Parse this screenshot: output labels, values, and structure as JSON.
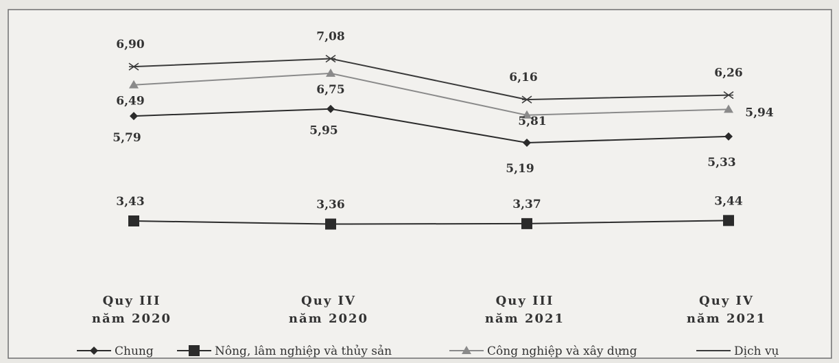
{
  "chart_data": {
    "type": "line",
    "title": "",
    "xlabel": "",
    "ylabel": "",
    "categories": [
      [
        "Quy III",
        "năm 2020"
      ],
      [
        "Quy IV",
        "năm 2020"
      ],
      [
        "Quy III",
        "năm 2021"
      ],
      [
        "Quy IV",
        "năm 2021"
      ]
    ],
    "ylim": [
      0,
      8
    ],
    "grid": false,
    "legend_position": "bottom",
    "series": [
      {
        "name": "Chung",
        "values": [
          5.79,
          5.95,
          5.19,
          5.33
        ],
        "labels": [
          "5,79",
          "5,95",
          "5,19",
          "5,33"
        ],
        "color": "#2b2b2b",
        "marker": "diamond"
      },
      {
        "name": "Nông, lâm nghiệp và thủy sản",
        "values": [
          3.43,
          3.36,
          3.37,
          3.44
        ],
        "labels": [
          "3,43",
          "3,36",
          "3,37",
          "3,44"
        ],
        "color": "#2b2b2b",
        "marker": "square"
      },
      {
        "name": "Công nghiệp và xây dựng",
        "values": [
          6.49,
          6.75,
          5.81,
          5.94
        ],
        "labels": [
          "6,49",
          "6,75",
          "5,81",
          "5,94"
        ],
        "color": "#8a8a8a",
        "marker": "triangle"
      },
      {
        "name": "Dịch vụ",
        "values": [
          6.9,
          7.08,
          6.16,
          6.26
        ],
        "labels": [
          "6,90",
          "7,08",
          "6,16",
          "6,26"
        ],
        "color": "#3a3a3a",
        "marker": "x"
      }
    ]
  }
}
